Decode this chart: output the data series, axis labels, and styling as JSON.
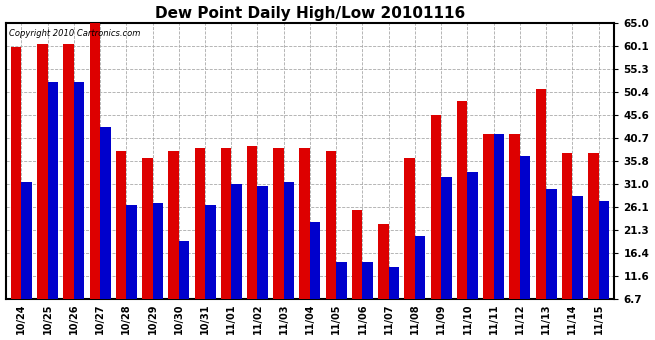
{
  "title": "Dew Point Daily High/Low 20101116",
  "copyright": "Copyright 2010 Cartronics.com",
  "categories": [
    "10/24",
    "10/25",
    "10/26",
    "10/27",
    "10/28",
    "10/29",
    "10/30",
    "10/31",
    "11/01",
    "11/02",
    "11/03",
    "11/04",
    "11/05",
    "11/06",
    "11/07",
    "11/08",
    "11/09",
    "11/10",
    "11/11",
    "11/12",
    "11/13",
    "11/14",
    "11/15"
  ],
  "high_values": [
    60.0,
    60.5,
    60.5,
    65.0,
    38.0,
    36.5,
    38.0,
    38.5,
    38.5,
    39.0,
    38.5,
    38.5,
    38.0,
    25.5,
    22.5,
    36.5,
    45.5,
    48.5,
    41.5,
    41.5,
    51.0,
    37.5,
    37.5
  ],
  "low_values": [
    31.5,
    52.5,
    52.5,
    43.0,
    26.5,
    27.0,
    19.0,
    26.5,
    31.0,
    30.5,
    31.5,
    23.0,
    14.5,
    14.5,
    13.5,
    20.0,
    32.5,
    33.5,
    41.5,
    37.0,
    30.0,
    28.5,
    27.5
  ],
  "high_color": "#dd0000",
  "low_color": "#0000cc",
  "bg_color": "#ffffff",
  "plot_bg_color": "#ffffff",
  "grid_color": "#aaaaaa",
  "title_fontsize": 11,
  "yticks": [
    6.7,
    11.6,
    16.4,
    21.3,
    26.1,
    31.0,
    35.8,
    40.7,
    45.6,
    50.4,
    55.3,
    60.1,
    65.0
  ],
  "ymin": 6.7,
  "ymax": 65.0,
  "bar_width": 0.4
}
